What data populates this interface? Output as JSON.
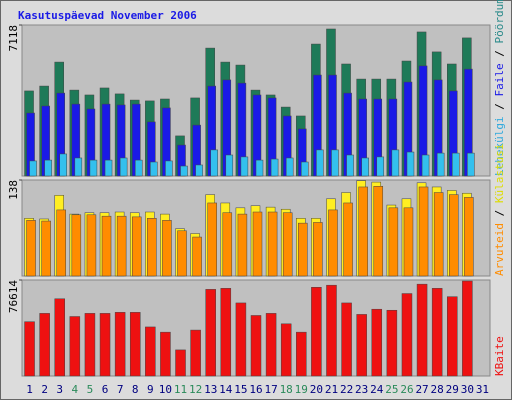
{
  "chart_data": {
    "type": "bar",
    "title": "Kasutuspäevad November 2006",
    "categories": [
      "1",
      "2",
      "3",
      "4",
      "5",
      "6",
      "7",
      "8",
      "9",
      "10",
      "11",
      "12",
      "13",
      "14",
      "15",
      "16",
      "17",
      "18",
      "19",
      "20",
      "21",
      "22",
      "23",
      "24",
      "25",
      "26",
      "27",
      "28",
      "29",
      "30",
      "31"
    ],
    "weekends": [
      "4",
      "5",
      "11",
      "12",
      "18",
      "19",
      "25",
      "26"
    ],
    "weekend_color": "#2a8a5a",
    "label_color": "#000080",
    "panels": [
      {
        "ylim": [
          0,
          7118
        ],
        "yticks": [
          7118
        ],
        "series": [
          {
            "name": "Pöördumisi",
            "color": "#1e7a58",
            "text_color": "#2a8a8a",
            "values": [
              4010,
              4240,
              5370,
              4050,
              3820,
              4150,
              3870,
              3580,
              3540,
              3630,
              1890,
              3680,
              6030,
              5370,
              5230,
              4050,
              3820,
              3250,
              2830,
              6220,
              6930,
              5280,
              4570,
              4570,
              4570,
              5420,
              6790,
              5850,
              5280,
              6510,
              null
            ]
          },
          {
            "name": "Faile",
            "color": "#1a1ae6",
            "text_color": "#1a1ae6",
            "values": [
              2970,
              3300,
              3910,
              3390,
              3160,
              3390,
              3350,
              3390,
              2550,
              3210,
              1460,
              2400,
              4240,
              4530,
              4380,
              3820,
              3680,
              2830,
              2220,
              4760,
              4760,
              3910,
              3630,
              3630,
              3630,
              4430,
              5190,
              4530,
              4010,
              5040,
              null
            ]
          },
          {
            "name": "Lehekülgi",
            "color": "#33c0ee",
            "text_color": "#33aadd",
            "values": [
              710,
              750,
              1040,
              850,
              750,
              750,
              850,
              750,
              660,
              710,
              470,
              520,
              1230,
              990,
              900,
              750,
              800,
              850,
              660,
              1230,
              1230,
              990,
              850,
              900,
              1230,
              1130,
              990,
              1080,
              1080,
              1080,
              null
            ]
          }
        ]
      },
      {
        "ylim": [
          0,
          138
        ],
        "yticks": [
          138
        ],
        "series": [
          {
            "name": "Külastusi",
            "color": "#ffee22",
            "text_color": "#dddd00",
            "values": [
              83,
              82,
              116,
              89,
              91,
              91,
              92,
              91,
              92,
              89,
              68,
              61,
              117,
              105,
              98,
              101,
              99,
              96,
              83,
              83,
              111,
              120,
              137,
              135,
              102,
              111,
              134,
              128,
              123,
              119,
              null
            ]
          },
          {
            "name": "Arvuteid",
            "color": "#ff8c00",
            "text_color": "#ff8c00",
            "values": [
              80,
              79,
              95,
              88,
              88,
              86,
              86,
              85,
              83,
              80,
              65,
              56,
              105,
              91,
              89,
              92,
              92,
              91,
              76,
              77,
              95,
              105,
              128,
              129,
              98,
              98,
              128,
              120,
              117,
              113,
              null
            ]
          }
        ]
      },
      {
        "ylim": [
          0,
          76614
        ],
        "yticks": [
          76614
        ],
        "series": [
          {
            "name": "KBaite",
            "color": "#ee1111",
            "text_color": "#ee1111",
            "values": [
              43320,
              49980,
              61640,
              47480,
              49980,
              49980,
              50810,
              50810,
              39150,
              34990,
              20830,
              36650,
              69140,
              69970,
              58310,
              48310,
              49980,
              41650,
              34990,
              70810,
              72470,
              58310,
              49150,
              53310,
              52480,
              65810,
              73300,
              69970,
              63310,
              75800,
              null
            ]
          }
        ]
      }
    ]
  }
}
